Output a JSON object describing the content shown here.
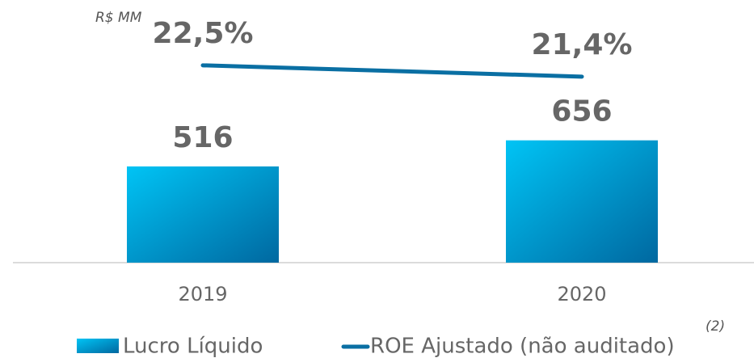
{
  "chart_data": {
    "type": "bar",
    "annotations": [
      "R$ MM",
      "(2)"
    ],
    "categories": [
      "2019",
      "2020"
    ],
    "series": [
      {
        "name": "Lucro Líquido",
        "type": "bar",
        "color": "#00c4f5",
        "values": [
          516,
          656
        ],
        "value_labels": [
          "516",
          "656"
        ]
      },
      {
        "name": "ROE Ajustado (não auditado)",
        "type": "line",
        "axis": "y2",
        "color": "#0a6fa3",
        "values": [
          22.5,
          21.4
        ],
        "value_labels": [
          "22,5%",
          "21,4%"
        ]
      }
    ],
    "ylim": [
      0,
      1400
    ],
    "y2lim": [
      3.3,
      28.7
    ]
  }
}
